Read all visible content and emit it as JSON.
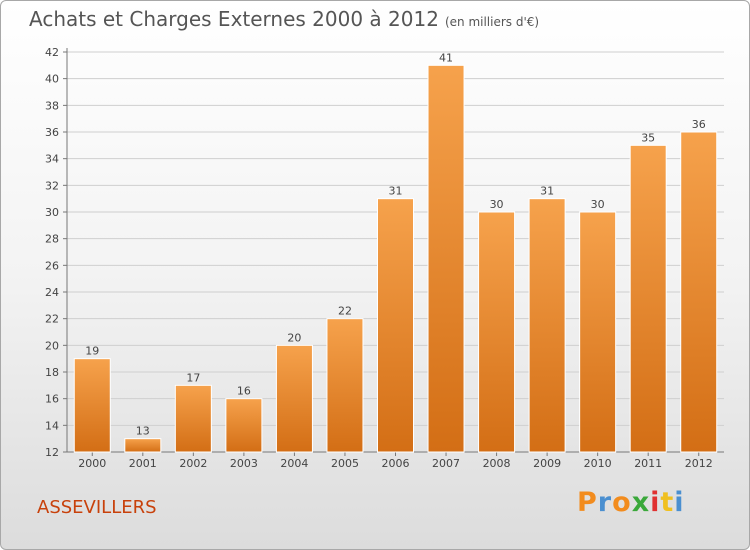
{
  "title": "Achats et Charges Externes 2000 à 2012",
  "subtitle": "(en milliers d'€)",
  "place_name": "ASSEVILLERS",
  "logo": {
    "text": "Proxiti",
    "letter_colors": [
      "#f28c1e",
      "#4a8fd0",
      "#f28c1e",
      "#3aa83a",
      "#e03030",
      "#f0c020",
      "#4a8fd0"
    ]
  },
  "colors": {
    "bar_light": "#f6a24c",
    "bar_dark": "#d36e15",
    "grid": "#cfcfcf",
    "axis": "#777777"
  },
  "chart_data": {
    "type": "bar",
    "title": "Achats et Charges Externes 2000 à 2012",
    "subtitle": "(en milliers d'€)",
    "categories": [
      "2000",
      "2001",
      "2002",
      "2003",
      "2004",
      "2005",
      "2006",
      "2007",
      "2008",
      "2009",
      "2010",
      "2011",
      "2012"
    ],
    "values": [
      19,
      13,
      17,
      16,
      20,
      22,
      31,
      41,
      30,
      31,
      30,
      35,
      36
    ],
    "ylim": [
      12,
      42
    ],
    "yticks": [
      12,
      14,
      16,
      18,
      20,
      22,
      24,
      26,
      28,
      30,
      32,
      34,
      36,
      38,
      40,
      42
    ],
    "grid": true,
    "data_labels": true
  }
}
